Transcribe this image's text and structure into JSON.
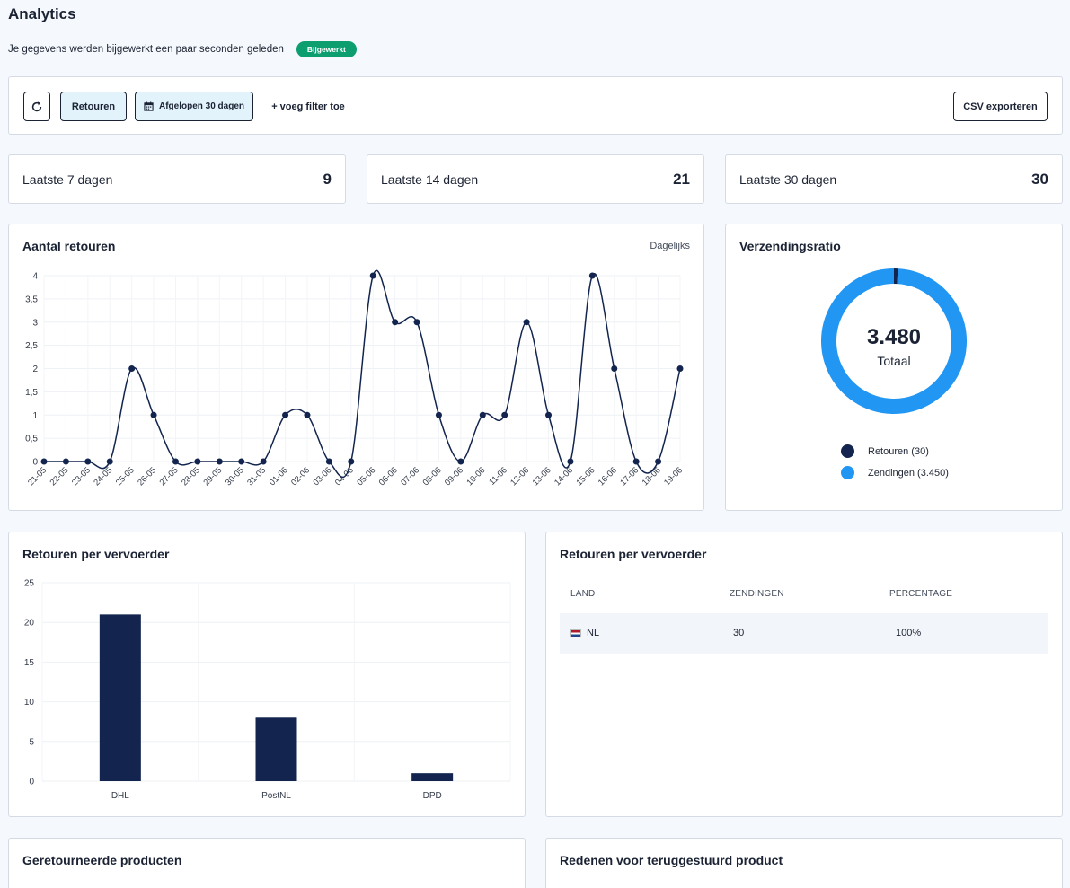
{
  "header": {
    "title": "Analytics",
    "update_text": "Je gegevens werden bijgewerkt een paar seconden geleden",
    "badge": "Bijgewerkt"
  },
  "toolbar": {
    "refresh_icon": "refresh-icon",
    "returns_label": "Retouren",
    "period_label": "Afgelopen 30 dagen",
    "calendar_icon": "calendar-icon",
    "add_filter_label": "+ voeg filter toe",
    "csv_label": "CSV exporteren"
  },
  "stats": [
    {
      "label": "Laatste 7 dagen",
      "value": "9"
    },
    {
      "label": "Laatste 14 dagen",
      "value": "21"
    },
    {
      "label": "Laatste 30 dagen",
      "value": "30"
    }
  ],
  "returns_chart": {
    "title": "Aantal retouren",
    "granularity": "Dagelijks"
  },
  "ratio_card": {
    "title": "Verzendingsratio",
    "total_value": "3.480",
    "total_label": "Totaal",
    "legend": [
      {
        "label": "Retouren (30)",
        "color": "#13254f"
      },
      {
        "label": "Zendingen (3.450)",
        "color": "#2196f3"
      }
    ]
  },
  "carrier_chart": {
    "title": "Retouren per vervoerder"
  },
  "carrier_table": {
    "title": "Retouren per vervoerder",
    "columns": [
      "LAND",
      "ZENDINGEN",
      "PERCENTAGE"
    ],
    "rows": [
      {
        "country": "NL",
        "shipments": "30",
        "percentage": "100%"
      }
    ]
  },
  "products_card": {
    "title": "Geretourneerde producten"
  },
  "reasons_card": {
    "title": "Redenen voor teruggestuurd product"
  },
  "chart_data": [
    {
      "type": "line",
      "title": "Aantal retouren",
      "x": [
        "21-05",
        "22-05",
        "23-05",
        "24-05",
        "25-05",
        "26-05",
        "27-05",
        "28-05",
        "29-05",
        "30-05",
        "31-05",
        "01-06",
        "02-06",
        "03-06",
        "04-06",
        "05-06",
        "06-06",
        "07-06",
        "08-06",
        "09-06",
        "10-06",
        "11-06",
        "12-06",
        "13-06",
        "14-06",
        "15-06",
        "16-06",
        "17-06",
        "18-06",
        "19-06"
      ],
      "values": [
        0,
        0,
        0,
        0,
        2,
        1,
        0,
        0,
        0,
        0,
        0,
        1,
        1,
        0,
        0,
        4,
        3,
        3,
        1,
        0,
        1,
        1,
        3,
        1,
        0,
        4,
        2,
        0,
        0,
        2
      ],
      "y_ticks": [
        "0",
        "0,5",
        "1",
        "1,5",
        "2",
        "2,5",
        "3",
        "3,5",
        "4"
      ],
      "ylim": [
        0,
        4
      ],
      "color": "#13254f",
      "grid": true
    },
    {
      "type": "pie",
      "title": "Verzendingsratio",
      "categories": [
        "Retouren",
        "Zendingen"
      ],
      "values": [
        30,
        3450
      ],
      "colors": [
        "#13254f",
        "#2196f3"
      ],
      "legend": "bottom"
    },
    {
      "type": "bar",
      "title": "Retouren per vervoerder",
      "categories": [
        "DHL",
        "PostNL",
        "DPD"
      ],
      "values": [
        21,
        8,
        1
      ],
      "y_ticks": [
        "0",
        "5",
        "10",
        "15",
        "20",
        "25"
      ],
      "ylim": [
        0,
        25
      ],
      "color": "#13254f",
      "grid": true
    }
  ]
}
